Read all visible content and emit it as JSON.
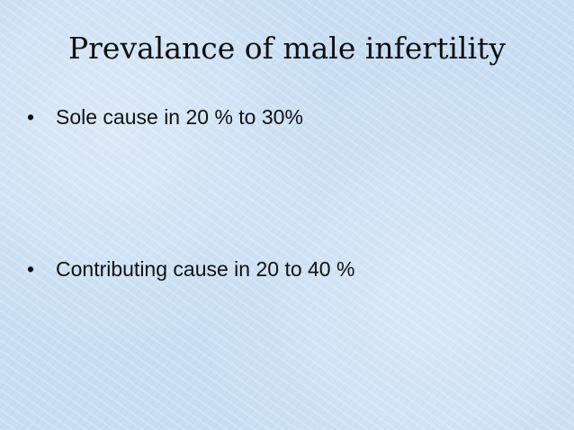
{
  "slide": {
    "title": "Prevalance of male infertility",
    "bullets": [
      "Sole cause in 20 % to 30%",
      "Contributing cause in 20 to 40 %"
    ]
  }
}
